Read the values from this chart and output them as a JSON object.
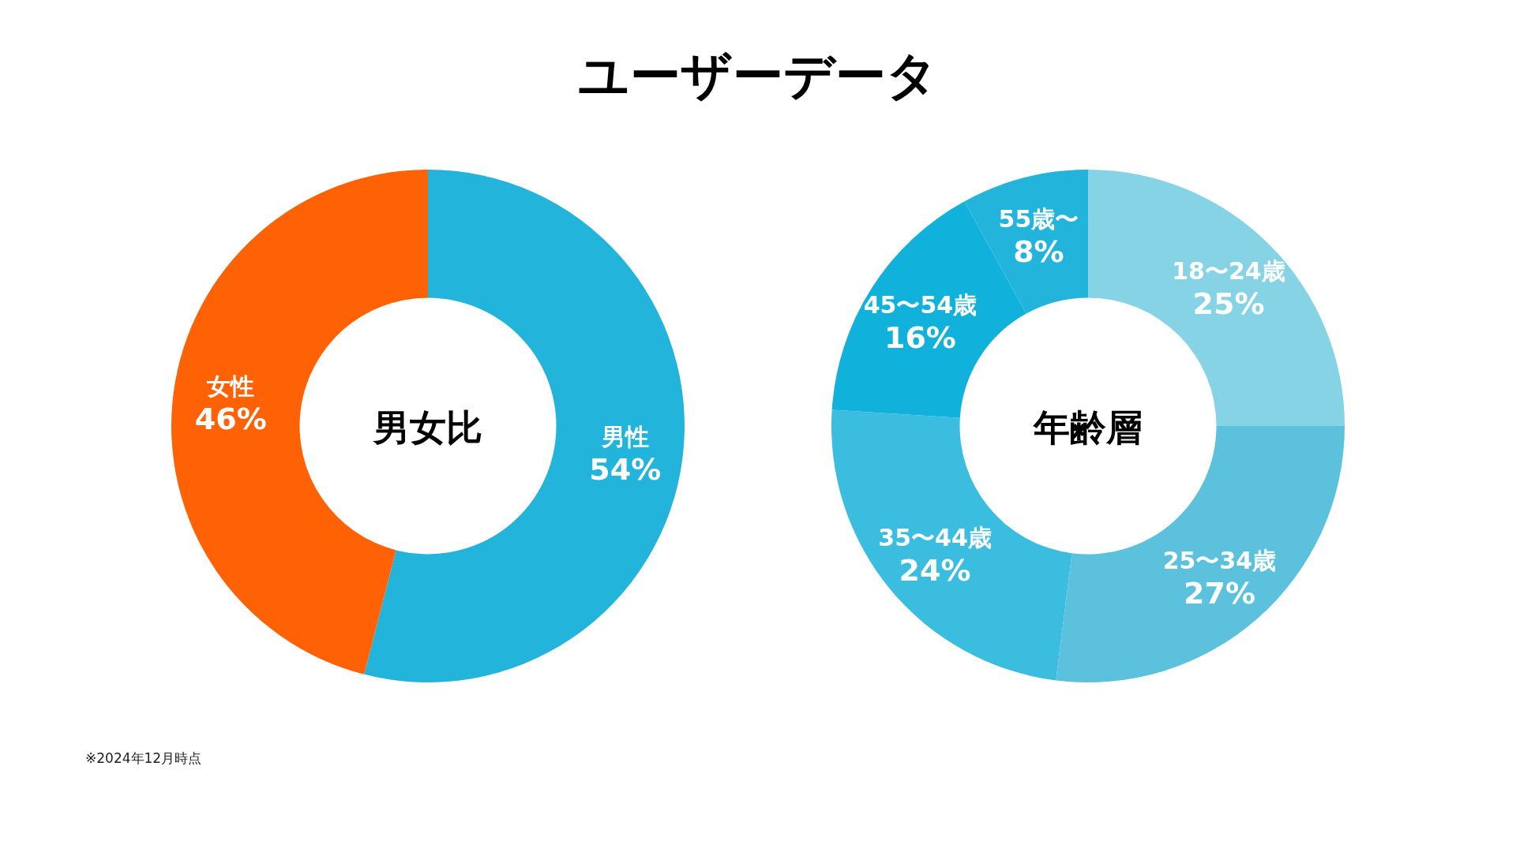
{
  "chart_data": [
    {
      "type": "other",
      "title": "ユーザーデータ",
      "annotations": [
        "※2024年12月時点"
      ]
    },
    {
      "type": "donut",
      "title": "男女比",
      "categories": [
        "男性",
        "女性"
      ],
      "values": [
        54,
        46
      ],
      "colors": [
        "#22b4db",
        "#ff6105"
      ],
      "value_labels": [
        "54%",
        "46%"
      ]
    },
    {
      "type": "donut",
      "title": "年齢層",
      "categories": [
        "18〜24歳",
        "25〜34歳",
        "35〜44歳",
        "45〜54歳",
        "55歳〜"
      ],
      "values": [
        25,
        27,
        24,
        16,
        8
      ],
      "colors": [
        "#87d3e6",
        "#5bc1dc",
        "#3bbde0",
        "#10b2dc",
        "#22b4db"
      ],
      "value_labels": [
        "25%",
        "27%",
        "24%",
        "16%",
        "8%"
      ]
    }
  ]
}
